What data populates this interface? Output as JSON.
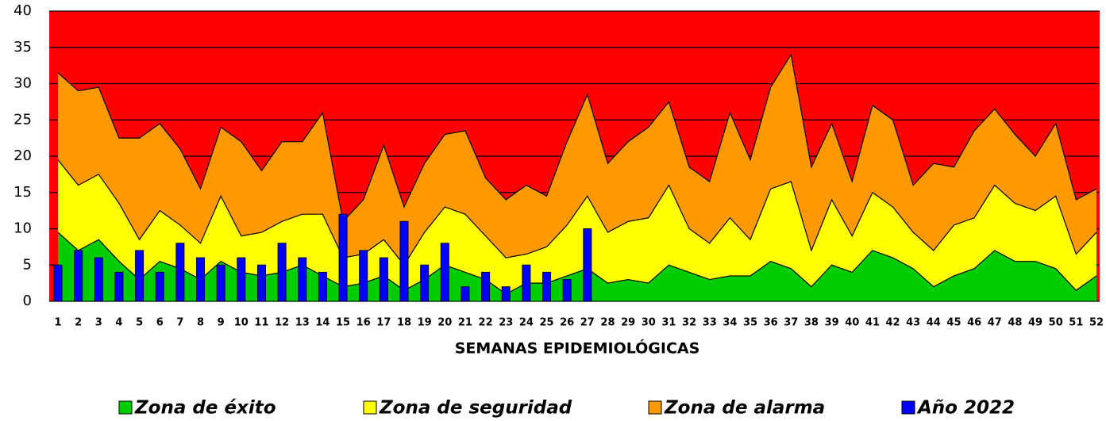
{
  "chart_data": {
    "type": "endemic-channel",
    "x_label": "SEMANAS EPIDEMIOLÓGICAS",
    "categories": [
      "1",
      "2",
      "3",
      "4",
      "5",
      "6",
      "7",
      "8",
      "9",
      "10",
      "11",
      "12",
      "13",
      "14",
      "15",
      "16",
      "17",
      "18",
      "19",
      "20",
      "21",
      "22",
      "23",
      "24",
      "25",
      "26",
      "27",
      "28",
      "29",
      "30",
      "31",
      "32",
      "33",
      "34",
      "35",
      "36",
      "37",
      "38",
      "39",
      "40",
      "41",
      "42",
      "43",
      "44",
      "45",
      "46",
      "47",
      "48",
      "49",
      "50",
      "51",
      "52"
    ],
    "ylim": [
      0,
      40
    ],
    "yticks": [
      0,
      5,
      10,
      15,
      20,
      25,
      30,
      35,
      40
    ],
    "grid": true,
    "plot_background": "#ff0000",
    "series": [
      {
        "name": "Zona de éxito",
        "kind": "area",
        "color": "#00cc00",
        "values": [
          9.5,
          7,
          8.5,
          5.5,
          3,
          5.5,
          4.5,
          3,
          5.5,
          4,
          3.5,
          4,
          5,
          3.5,
          2,
          2.5,
          3.5,
          1.5,
          3,
          5,
          4,
          3,
          1,
          2.5,
          2.5,
          3.5,
          4.5,
          2.5,
          3,
          2.5,
          5,
          4,
          3,
          3.5,
          3.5,
          5.5,
          4.5,
          2,
          5,
          4,
          7,
          6,
          4.5,
          2,
          3.5,
          4.5,
          7,
          5.5,
          5.5,
          4.5,
          1.5,
          3.5
        ]
      },
      {
        "name": "Zona de seguridad",
        "kind": "area",
        "color": "#ffff00",
        "values": [
          19.5,
          16,
          17.5,
          13.5,
          8.5,
          12.5,
          10.5,
          8,
          14.5,
          9,
          9.5,
          11,
          12,
          12,
          6,
          6.5,
          8.5,
          5,
          9.5,
          13,
          12,
          9,
          6,
          6.5,
          7.5,
          10.5,
          14.5,
          9.5,
          11,
          11.5,
          16,
          10,
          8,
          11.5,
          8.5,
          15.5,
          16.5,
          7,
          14,
          9,
          15,
          13,
          9.5,
          7,
          10.5,
          11.5,
          16,
          13.5,
          12.5,
          14.5,
          6.5,
          9.5
        ]
      },
      {
        "name": "Zona de alarma",
        "kind": "area",
        "color": "#ff9900",
        "values": [
          31.5,
          29,
          29.5,
          22.5,
          22.5,
          24.5,
          21,
          15.5,
          24,
          22,
          18,
          22,
          22,
          26,
          11,
          14,
          21.5,
          13,
          19,
          23,
          23.5,
          17,
          14,
          16,
          14.5,
          22,
          28.5,
          19,
          22,
          24,
          27.5,
          18.5,
          16.5,
          26,
          19.5,
          29.5,
          34,
          18.5,
          24.5,
          16.5,
          27,
          25,
          16,
          19,
          18.5,
          23.5,
          26.5,
          23,
          20,
          24.5,
          14,
          15.5
        ]
      },
      {
        "name": "Año 2022",
        "kind": "bar",
        "color": "#0000ff",
        "values": [
          5,
          7,
          6,
          4,
          7,
          4,
          8,
          6,
          5,
          6,
          5,
          8,
          6,
          4,
          12,
          7,
          6,
          11,
          5,
          8,
          2,
          4,
          2,
          5,
          4,
          3,
          10,
          null,
          null,
          null,
          null,
          null,
          null,
          null,
          null,
          null,
          null,
          null,
          null,
          null,
          null,
          null,
          null,
          null,
          null,
          null,
          null,
          null,
          null,
          null,
          null,
          null
        ]
      }
    ]
  }
}
